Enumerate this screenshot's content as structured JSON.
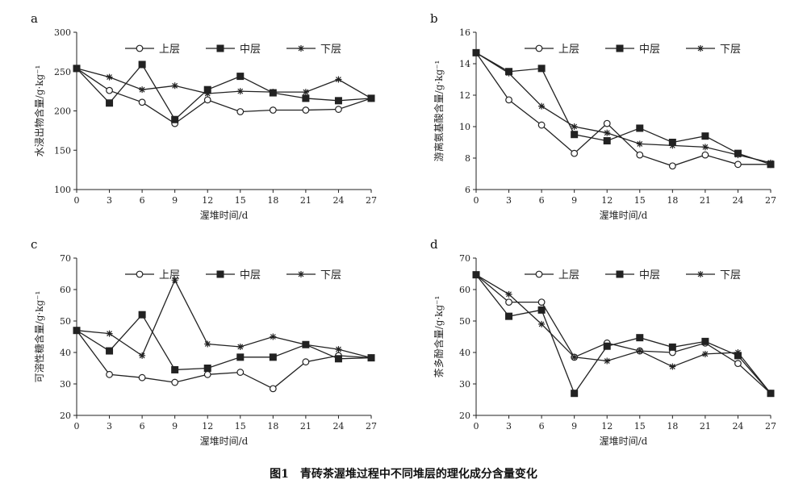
{
  "figure_caption": "图1　青砖茶渥堆过程中不同堆层的理化成分含量变化",
  "chart_data": [
    {
      "panel": "a",
      "type": "line",
      "xlabel": "渥堆时间/d",
      "ylabel": "水浸出物含量/g·kg⁻¹",
      "x": [
        0,
        3,
        6,
        9,
        12,
        15,
        18,
        21,
        24,
        27
      ],
      "xlim": [
        0,
        27
      ],
      "ylim": [
        100,
        300
      ],
      "yticks": [
        100,
        150,
        200,
        250,
        300
      ],
      "legend_position": "top",
      "series": [
        {
          "name": "上层",
          "marker": "open-circle",
          "values": [
            254,
            226,
            211,
            184,
            214,
            199,
            201,
            201,
            202,
            216
          ]
        },
        {
          "name": "中层",
          "marker": "filled-square",
          "values": [
            254,
            210,
            259,
            189,
            227,
            244,
            223,
            216,
            213,
            216
          ]
        },
        {
          "name": "下层",
          "marker": "star",
          "values": [
            254,
            243,
            227,
            232,
            222,
            225,
            224,
            224,
            240,
            216
          ]
        }
      ]
    },
    {
      "panel": "b",
      "type": "line",
      "xlabel": "渥堆时间/d",
      "ylabel": "游离氨基酸含量/g·kg⁻¹",
      "x": [
        0,
        3,
        6,
        9,
        12,
        15,
        18,
        21,
        24,
        27
      ],
      "xlim": [
        0,
        27
      ],
      "ylim": [
        6,
        16
      ],
      "yticks": [
        6,
        8,
        10,
        12,
        14,
        16
      ],
      "legend_position": "top",
      "series": [
        {
          "name": "上层",
          "marker": "open-circle",
          "values": [
            14.7,
            11.7,
            10.1,
            8.3,
            10.2,
            8.2,
            7.5,
            8.2,
            7.6,
            7.6
          ]
        },
        {
          "name": "中层",
          "marker": "filled-square",
          "values": [
            14.7,
            13.5,
            13.7,
            9.5,
            9.1,
            9.9,
            9.0,
            9.4,
            8.3,
            7.6
          ]
        },
        {
          "name": "下层",
          "marker": "star",
          "values": [
            14.7,
            13.4,
            11.3,
            10.0,
            9.6,
            8.9,
            8.8,
            8.7,
            8.2,
            7.7
          ]
        }
      ]
    },
    {
      "panel": "c",
      "type": "line",
      "xlabel": "渥堆时间/d",
      "ylabel": "可溶性糖含量/g·kg⁻¹",
      "x": [
        0,
        3,
        6,
        9,
        12,
        15,
        18,
        21,
        24,
        27
      ],
      "xlim": [
        0,
        27
      ],
      "ylim": [
        20,
        70
      ],
      "yticks": [
        20,
        30,
        40,
        50,
        60,
        70
      ],
      "legend_position": "top",
      "series": [
        {
          "name": "上层",
          "marker": "open-circle",
          "values": [
            47,
            33,
            32,
            30.5,
            33,
            33.7,
            28.5,
            37,
            39,
            38.3
          ]
        },
        {
          "name": "中层",
          "marker": "filled-square",
          "values": [
            47,
            40.5,
            52,
            34.5,
            35,
            38.5,
            38.5,
            42.5,
            38,
            38.3
          ]
        },
        {
          "name": "下层",
          "marker": "star",
          "values": [
            47,
            46,
            39,
            63,
            42.7,
            41.8,
            45,
            42.5,
            41,
            38.3
          ]
        }
      ]
    },
    {
      "panel": "d",
      "type": "line",
      "xlabel": "渥堆时间/d",
      "ylabel": "茶多酚含量/g·kg⁻¹",
      "x": [
        0,
        3,
        6,
        9,
        12,
        15,
        18,
        21,
        24,
        27
      ],
      "xlim": [
        0,
        27
      ],
      "ylim": [
        20,
        70
      ],
      "yticks": [
        20,
        30,
        40,
        50,
        60,
        70
      ],
      "legend_position": "top",
      "series": [
        {
          "name": "上层",
          "marker": "open-circle",
          "values": [
            64.7,
            56,
            56,
            38.5,
            43,
            40.5,
            40,
            43,
            36.5,
            27
          ]
        },
        {
          "name": "中层",
          "marker": "filled-square",
          "values": [
            64.7,
            51.5,
            53.5,
            27,
            42,
            44.7,
            41.7,
            43.5,
            39,
            27
          ]
        },
        {
          "name": "下层",
          "marker": "star",
          "values": [
            64.7,
            58.5,
            49,
            38.5,
            37.3,
            40.5,
            35.5,
            39.5,
            40,
            27
          ]
        }
      ]
    }
  ]
}
